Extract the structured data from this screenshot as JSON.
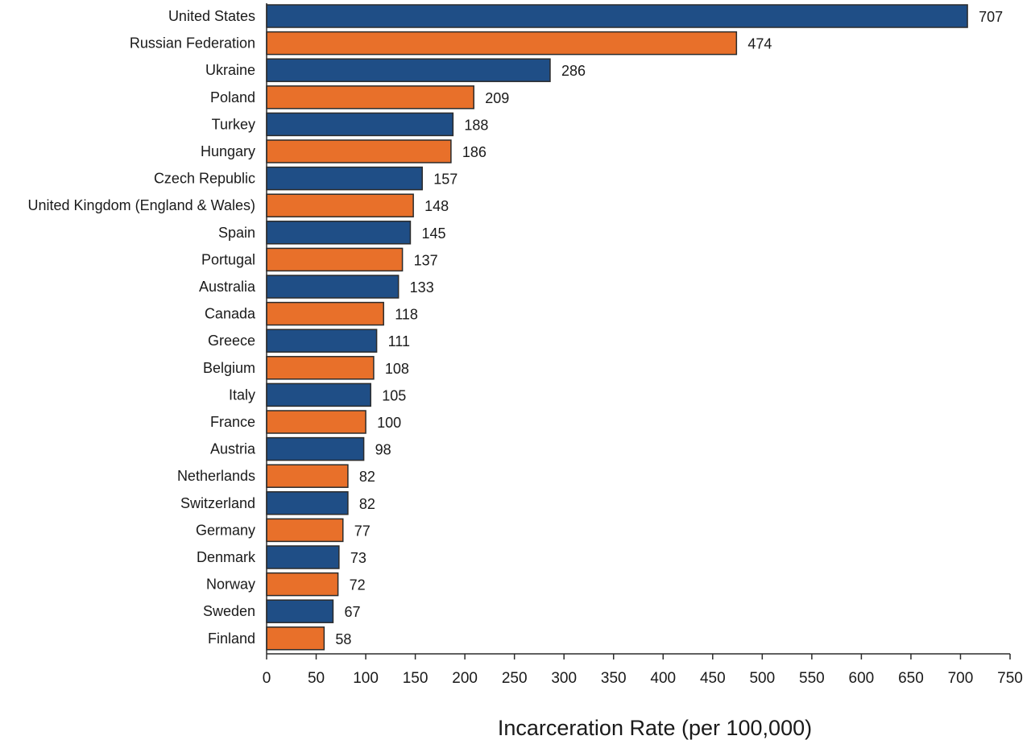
{
  "chart_data": {
    "type": "bar",
    "orientation": "horizontal",
    "xlabel": "Incarceration Rate (per 100,000)",
    "xlim": [
      0,
      750
    ],
    "xticks": [
      0,
      50,
      100,
      150,
      200,
      250,
      300,
      350,
      400,
      450,
      500,
      550,
      600,
      650,
      700,
      750
    ],
    "grid": false,
    "data_labels": true,
    "colors": [
      "#1f4e86",
      "#e8702a"
    ],
    "categories": [
      "United States",
      "Russian Federation",
      "Ukraine",
      "Poland",
      "Turkey",
      "Hungary",
      "Czech Republic",
      "United Kingdom (England & Wales)",
      "Spain",
      "Portugal",
      "Australia",
      "Canada",
      "Greece",
      "Belgium",
      "Italy",
      "France",
      "Austria",
      "Netherlands",
      "Switzerland",
      "Germany",
      "Denmark",
      "Norway",
      "Sweden",
      "Finland"
    ],
    "values": [
      707,
      474,
      286,
      209,
      188,
      186,
      157,
      148,
      145,
      137,
      133,
      118,
      111,
      108,
      105,
      100,
      98,
      82,
      82,
      77,
      73,
      72,
      67,
      58
    ]
  }
}
